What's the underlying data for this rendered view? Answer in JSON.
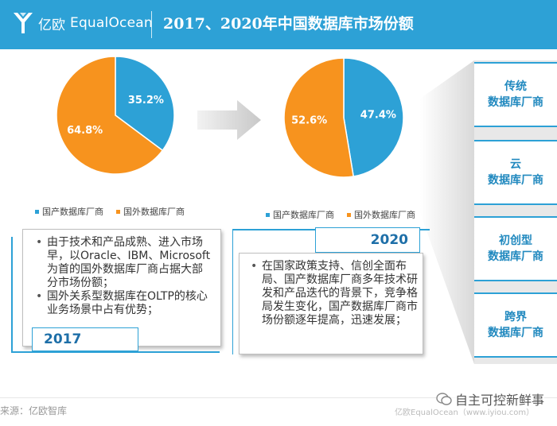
{
  "header": {
    "logo_cn": "亿欧",
    "logo_en": "EqualOcean",
    "title": "2017、2020年中国数据库市场份额"
  },
  "chart_data": [
    {
      "type": "pie",
      "title": "",
      "year": "2017",
      "slices": [
        {
          "name": "国产数据库厂商",
          "value": 35.2,
          "label": "35.2%",
          "color": "#2da1d6"
        },
        {
          "name": "国外数据库厂商",
          "value": 64.8,
          "label": "64.8%",
          "color": "#f7931e"
        }
      ],
      "legend_placement": "bottom"
    },
    {
      "type": "pie",
      "title": "",
      "year": "2020",
      "slices": [
        {
          "name": "国产数据库厂商",
          "value": 47.4,
          "label": "47.4%",
          "color": "#2da1d6"
        },
        {
          "name": "国外数据库厂商",
          "value": 52.6,
          "label": "52.6%",
          "color": "#f7931e"
        }
      ],
      "legend_placement": "bottom"
    }
  ],
  "legend": {
    "domestic": "国产数据库厂商",
    "foreign": "国外数据库厂商",
    "domestic_color": "#2da1d6",
    "foreign_color": "#f7931e"
  },
  "categories": [
    "传统\n数据库厂商",
    "云\n数据库厂商",
    "初创型\n数据库厂商",
    "跨界\n数据库厂商"
  ],
  "note_2017": {
    "year": "2017",
    "bullets": [
      "由于技术和产品成熟、进入市场早，以Oracle、IBM、Microsoft为首的国外数据库厂商占据大部分市场份额；",
      "国外关系型数据库在OLTP的核心业务场景中占有优势；"
    ]
  },
  "note_2020": {
    "year": "2020",
    "bullets": [
      "在国家政策支持、信创全面布局、国产数据库厂商多年技术研发和产品迭代的背景下，竞争格局发生变化，国产数据库厂商市场份额逐年提高，迅速发展；"
    ]
  },
  "footer": {
    "source": "来源：亿欧智库",
    "right": "亿欧EqualOcean（www.iyiou.com）",
    "watermark": "自主可控新鲜事"
  }
}
